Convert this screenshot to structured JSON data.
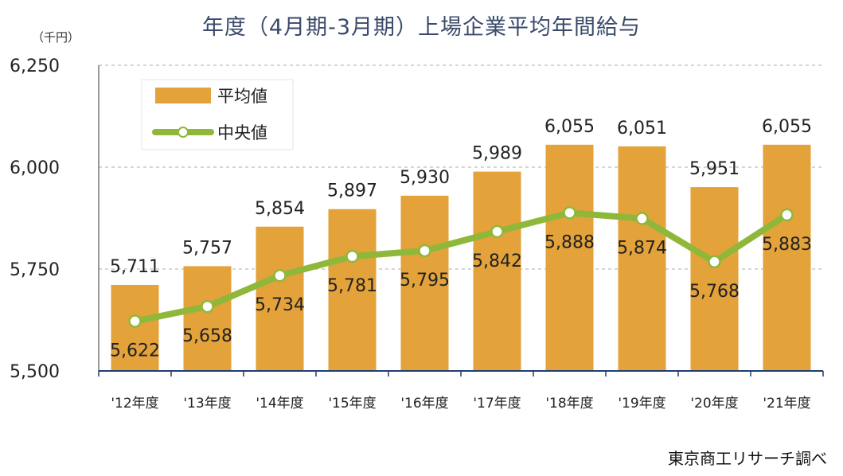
{
  "chart_data": {
    "type": "bar",
    "title": "年度（4月期-3月期）上場企業平均年間給与",
    "y_unit": "（千円）",
    "categories": [
      "'12年度",
      "'13年度",
      "'14年度",
      "'15年度",
      "'16年度",
      "'17年度",
      "'18年度",
      "'19年度",
      "'20年度",
      "'21年度"
    ],
    "series": [
      {
        "name": "平均値",
        "type": "bar",
        "color": "#e3a23a",
        "values": [
          5711,
          5757,
          5854,
          5897,
          5930,
          5989,
          6055,
          6051,
          5951,
          6055
        ],
        "labels": [
          "5,711",
          "5,757",
          "5,854",
          "5,897",
          "5,930",
          "5,989",
          "6,055",
          "6,051",
          "5,951",
          "6,055"
        ]
      },
      {
        "name": "中央値",
        "type": "line",
        "color": "#8fb83a",
        "values": [
          5622,
          5658,
          5734,
          5781,
          5795,
          5842,
          5888,
          5874,
          5768,
          5883
        ],
        "labels": [
          "5,622",
          "5,658",
          "5,734",
          "5,781",
          "5,795",
          "5,842",
          "5,888",
          "5,874",
          "5,768",
          "5,883"
        ]
      }
    ],
    "ylim": [
      5500,
      6250
    ],
    "yticks": [
      5500,
      5750,
      6000,
      6250
    ],
    "ytick_labels": [
      "5,500",
      "5,750",
      "6,000",
      "6,250"
    ],
    "grid": true,
    "legend_position": "top-left"
  },
  "source": "東京商工リサーチ調べ"
}
